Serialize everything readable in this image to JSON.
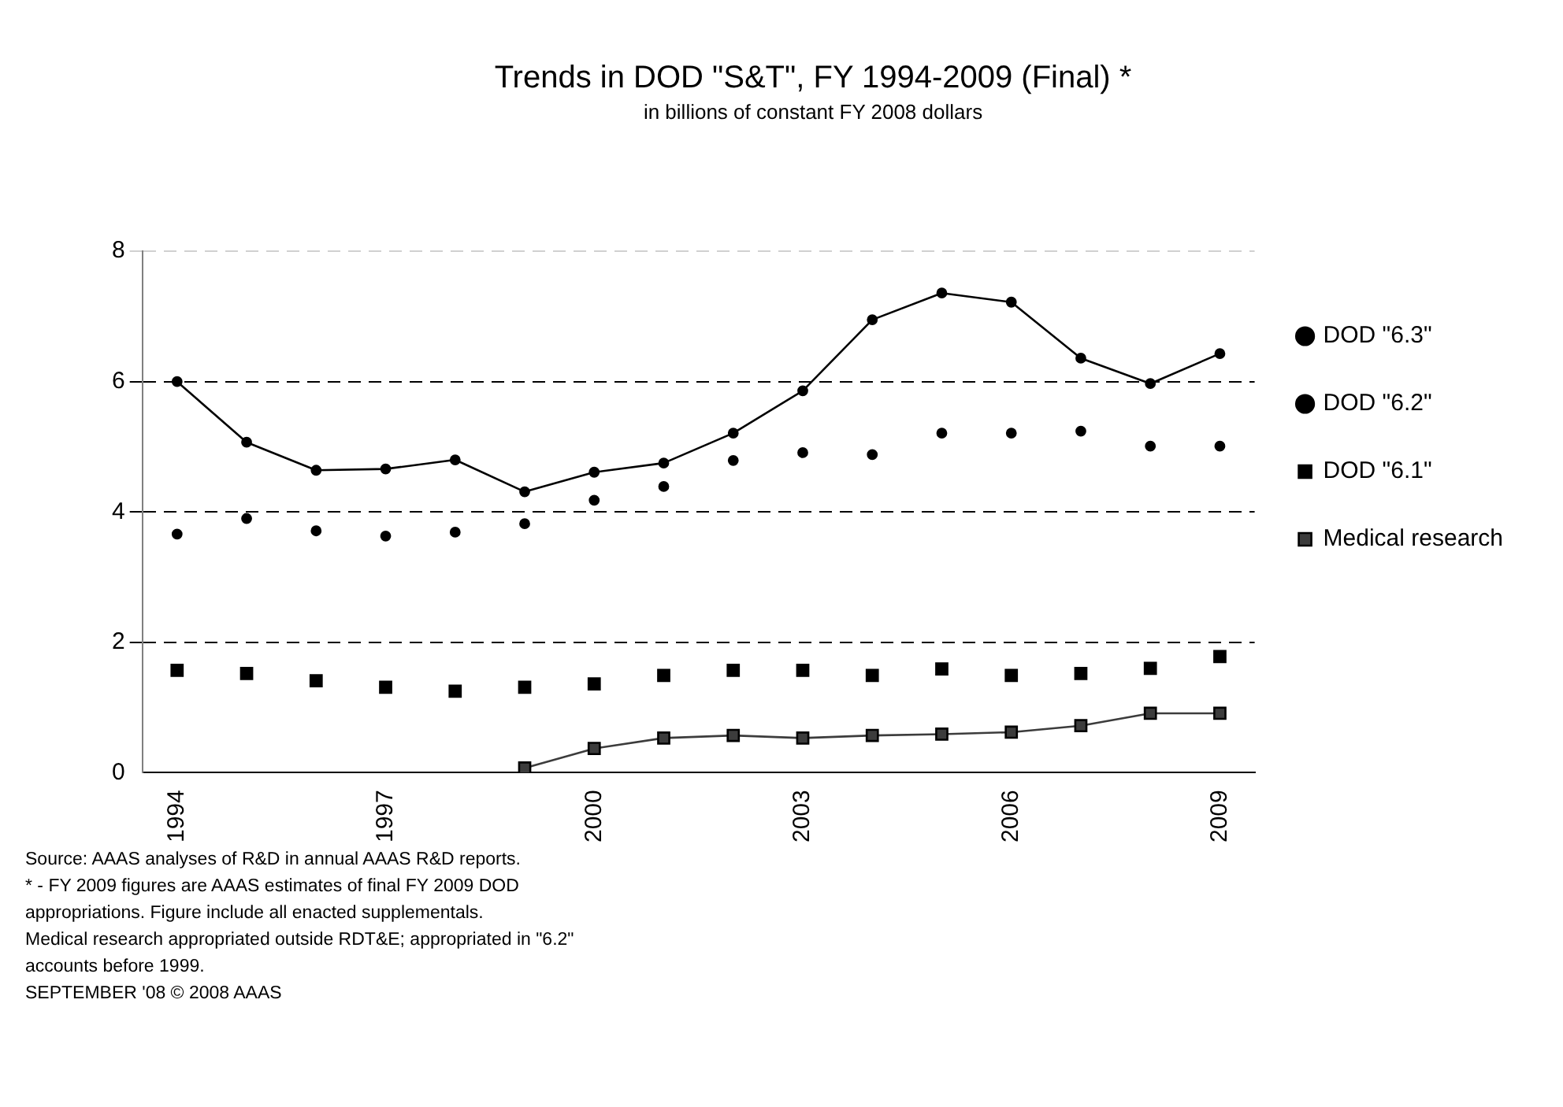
{
  "chart_data": {
    "type": "line",
    "title": "Trends in DOD \"S&T\", FY 1994-2009 (Final) *",
    "subtitle": "in billions of constant FY 2008 dollars",
    "categories": [
      "1994",
      null,
      null,
      "1997",
      null,
      null,
      "2000",
      null,
      null,
      "2003",
      null,
      null,
      "2006",
      null,
      null,
      "2009"
    ],
    "series": [
      {
        "name": "DOD \"6.3\"",
        "type": "line",
        "marker": "circle",
        "color": "#000000",
        "values": [
          6.0,
          5.07,
          4.64,
          4.66,
          4.8,
          4.31,
          4.61,
          4.75,
          5.21,
          5.86,
          6.95,
          7.36,
          7.22,
          6.36,
          5.97,
          6.43
        ]
      },
      {
        "name": "DOD \"6.2\"",
        "type": "scatter",
        "marker": "circle",
        "color": "#000000",
        "values": [
          3.66,
          3.9,
          3.71,
          3.63,
          3.69,
          3.82,
          4.18,
          4.39,
          4.79,
          4.91,
          4.88,
          5.21,
          5.21,
          5.24,
          5.01,
          5.01
        ]
      },
      {
        "name": "DOD \"6.1\"",
        "type": "scatter",
        "marker": "square",
        "color": "#000000",
        "values": [
          1.57,
          1.52,
          1.41,
          1.31,
          1.25,
          1.31,
          1.36,
          1.49,
          1.57,
          1.57,
          1.49,
          1.59,
          1.49,
          1.52,
          1.6,
          1.78
        ]
      },
      {
        "name": "Medical research",
        "type": "line",
        "marker": "square",
        "color": "#3c3c3c",
        "values": [
          null,
          null,
          null,
          null,
          null,
          0.07,
          0.37,
          0.53,
          0.57,
          0.53,
          0.57,
          0.59,
          0.62,
          0.72,
          0.91,
          0.91
        ]
      }
    ],
    "ylim": [
      0,
      8
    ],
    "yticks": [
      0,
      2,
      4,
      6,
      8
    ],
    "grid": "y",
    "legend": "right",
    "annotations": [
      "Source: AAAS analyses of R&D in annual AAAS R&D reports.",
      "* - FY 2009 figures are AAAS estimates of final FY 2009 DOD",
      "appropriations. Figure include all enacted supplementals.",
      "Medical research appropriated outside RDT&E; appropriated in \"6.2\"",
      "accounts before 1999.",
      "SEPTEMBER '08 © 2008 AAAS"
    ]
  }
}
